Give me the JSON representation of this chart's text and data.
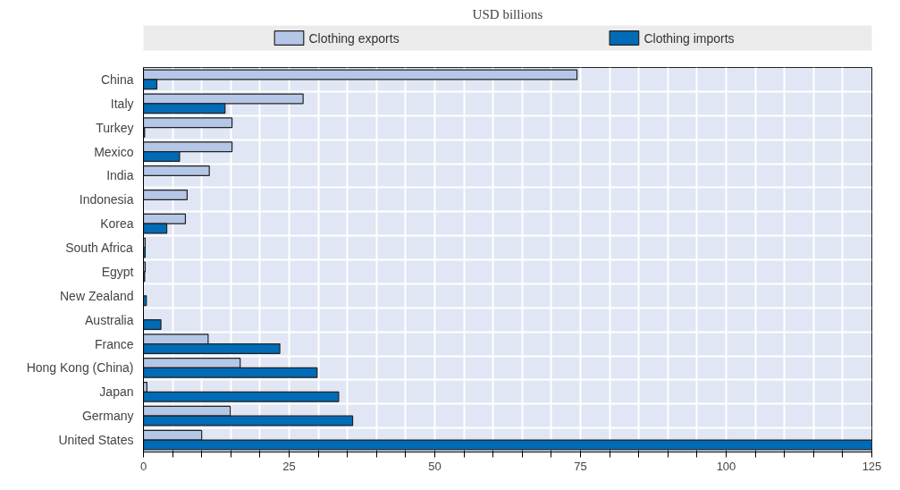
{
  "chart_data": {
    "type": "bar",
    "orientation": "horizontal",
    "title": "USD billions",
    "categories": [
      "China",
      "Italy",
      "Turkey",
      "Mexico",
      "India",
      "Indonesia",
      "Korea",
      "South Africa",
      "Egypt",
      "New Zealand",
      "Australia",
      "France",
      "Hong Kong (China)",
      "Japan",
      "Germany",
      "United States"
    ],
    "series": [
      {
        "name": "Clothing exports",
        "color": "#b4c7e7",
        "values": [
          74.4,
          27.4,
          15.2,
          15.2,
          11.3,
          7.5,
          7.2,
          0.3,
          0.3,
          null,
          null,
          11.1,
          16.6,
          0.6,
          14.9,
          10.0
        ]
      },
      {
        "name": "Clothing imports",
        "color": "#006bb6",
        "values": [
          2.3,
          14.0,
          0.2,
          6.2,
          null,
          null,
          4.0,
          0.3,
          0.2,
          0.5,
          3.0,
          23.4,
          29.8,
          33.5,
          35.9,
          125.0
        ]
      }
    ],
    "xlim": [
      0,
      125
    ],
    "xticks": [
      0,
      {
        "value": 5,
        "label": null
      },
      {
        "value": 10,
        "label": null
      },
      {
        "value": 15,
        "label": null
      },
      {
        "value": 20,
        "label": null
      },
      25,
      {
        "value": 30,
        "label": null
      },
      {
        "value": 35,
        "label": null
      },
      {
        "value": 40,
        "label": null
      },
      {
        "value": 45,
        "label": null
      },
      50,
      {
        "value": 55,
        "label": null
      },
      {
        "value": 60,
        "label": null
      },
      {
        "value": 65,
        "label": null
      },
      {
        "value": 70,
        "label": null
      },
      75,
      {
        "value": 80,
        "label": null
      },
      {
        "value": 85,
        "label": null
      },
      {
        "value": 90,
        "label": null
      },
      {
        "value": 95,
        "label": null
      },
      100,
      {
        "value": 105,
        "label": null
      },
      {
        "value": 110,
        "label": null
      },
      {
        "value": 115,
        "label": null
      },
      {
        "value": 120,
        "label": null
      },
      125
    ],
    "grid": true,
    "legend": "top"
  }
}
